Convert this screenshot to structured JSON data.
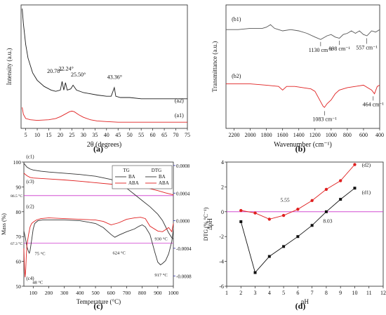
{
  "figure": {
    "panels": [
      {
        "id": "a",
        "label": "(a)"
      },
      {
        "id": "b",
        "label": "(b)"
      },
      {
        "id": "c",
        "label": "(c)"
      },
      {
        "id": "d",
        "label": "(d)"
      }
    ]
  },
  "chart_data": [
    {
      "id": "a",
      "type": "line",
      "xlabel": "2θ (degrees)",
      "ylabel": "Intensity (a.u.)",
      "xlim": [
        3,
        75
      ],
      "xticks": [
        5,
        10,
        15,
        20,
        25,
        30,
        35,
        40,
        45,
        50,
        55,
        60,
        65,
        70,
        75
      ],
      "yticks_shown": false,
      "series": [
        {
          "name": "(a2)",
          "color": "#1a1a1a",
          "x": [
            3.5,
            4,
            5,
            6,
            8,
            10,
            13,
            16,
            18,
            20,
            20.78,
            21.5,
            22.24,
            23,
            24.5,
            25.5,
            27,
            30,
            33,
            36,
            40,
            42,
            43.36,
            44,
            46,
            50,
            55,
            60,
            65,
            70,
            75
          ],
          "y": [
            0.97,
            0.85,
            0.68,
            0.57,
            0.45,
            0.39,
            0.34,
            0.31,
            0.3,
            0.31,
            0.38,
            0.31,
            0.37,
            0.31,
            0.32,
            0.35,
            0.31,
            0.29,
            0.28,
            0.27,
            0.26,
            0.26,
            0.33,
            0.26,
            0.25,
            0.25,
            0.24,
            0.24,
            0.24,
            0.24,
            0.24
          ]
        },
        {
          "name": "(a1)",
          "color": "#e02020",
          "x": [
            3.5,
            4,
            5,
            7,
            10,
            15,
            18,
            20,
            22,
            24,
            25,
            26,
            28,
            30,
            33,
            36,
            40,
            45,
            50,
            55,
            60,
            65,
            70,
            75
          ],
          "y": [
            0.17,
            0.115,
            0.08,
            0.07,
            0.065,
            0.07,
            0.08,
            0.095,
            0.115,
            0.135,
            0.14,
            0.135,
            0.11,
            0.09,
            0.07,
            0.06,
            0.055,
            0.05,
            0.05,
            0.05,
            0.05,
            0.05,
            0.05,
            0.05
          ]
        }
      ],
      "series_labels": [
        {
          "text": "(a2)",
          "x": 69.5,
          "y": 0.21
        },
        {
          "text": "(a1)",
          "x": 69.5,
          "y": 0.09
        }
      ],
      "annotations": [
        {
          "text": "20.78°",
          "x": 17.5,
          "y": 0.45
        },
        {
          "text": "22.24°",
          "x": 22.5,
          "y": 0.47
        },
        {
          "text": "25.50°",
          "x": 27.8,
          "y": 0.42
        },
        {
          "text": "43.36°",
          "x": 43.5,
          "y": 0.4
        }
      ]
    },
    {
      "id": "b",
      "type": "line",
      "xlabel": "Wavenumber (cm⁻¹)",
      "ylabel": "Transmittance (a.u.)",
      "xlim": [
        2300,
        400
      ],
      "xticks": [
        2200,
        2000,
        1800,
        1600,
        1400,
        1200,
        1000,
        800,
        600,
        400
      ],
      "yticks_shown": false,
      "series": [
        {
          "name": "(b1)",
          "color": "#555555",
          "x": [
            2300,
            2150,
            2000,
            1850,
            1800,
            1750,
            1700,
            1650,
            1600,
            1500,
            1400,
            1300,
            1200,
            1130,
            1050,
            1000,
            950,
            898,
            850,
            800,
            750,
            700,
            650,
            600,
            557,
            500,
            450,
            400
          ],
          "y": [
            0.8,
            0.8,
            0.81,
            0.81,
            0.82,
            0.84,
            0.81,
            0.8,
            0.79,
            0.8,
            0.79,
            0.77,
            0.74,
            0.72,
            0.75,
            0.76,
            0.74,
            0.73,
            0.76,
            0.77,
            0.79,
            0.77,
            0.79,
            0.76,
            0.75,
            0.79,
            0.78,
            0.8
          ]
        },
        {
          "name": "(b2)",
          "color": "#e02020",
          "x": [
            2300,
            2000,
            1800,
            1650,
            1600,
            1550,
            1450,
            1350,
            1250,
            1200,
            1150,
            1100,
            1083,
            1050,
            1000,
            950,
            900,
            850,
            800,
            700,
            600,
            500,
            464,
            430,
            400
          ],
          "y": [
            0.36,
            0.36,
            0.35,
            0.34,
            0.31,
            0.34,
            0.34,
            0.33,
            0.32,
            0.3,
            0.24,
            0.18,
            0.17,
            0.2,
            0.23,
            0.28,
            0.31,
            0.32,
            0.33,
            0.34,
            0.35,
            0.31,
            0.28,
            0.34,
            0.35
          ]
        }
      ],
      "series_labels": [
        {
          "text": "(b1)",
          "x": 2230,
          "y": 0.87
        },
        {
          "text": "(b2)",
          "x": 2230,
          "y": 0.41
        }
      ],
      "annotations": [
        {
          "text": "1130 cm⁻¹",
          "x": 1130,
          "y": 0.62,
          "arrow_to": 0.7
        },
        {
          "text": "898 cm⁻¹",
          "x": 898,
          "y": 0.63,
          "arrow_to": 0.71
        },
        {
          "text": "557 cm⁻¹",
          "x": 560,
          "y": 0.64,
          "arrow_to": 0.73
        },
        {
          "text": "1083 cm⁻¹",
          "x": 1080,
          "y": 0.06,
          "arrow_to": 0.14
        },
        {
          "text": "464 cm⁻¹",
          "x": 480,
          "y": 0.18,
          "arrow_to": 0.26
        }
      ]
    },
    {
      "id": "c",
      "type": "line",
      "xlabel": "Temperature (°C)",
      "ylabel": "Mass (%)",
      "y2label": "DTG (% °C⁻¹)",
      "xlim": [
        40,
        1000
      ],
      "ylim": [
        50,
        100
      ],
      "y2lim": [
        -0.00095,
        0.00085
      ],
      "xticks": [
        100,
        200,
        300,
        400,
        500,
        600,
        700,
        800,
        900,
        1000
      ],
      "yticks": [
        50,
        60,
        70,
        80,
        90,
        100
      ],
      "y2ticks": [
        -0.0008,
        -0.0004,
        0.0,
        0.0004,
        0.0008
      ],
      "y2ticklabels": [
        "-0.0008",
        "-0.0004",
        "0.0000",
        "0.0004",
        "0.0008"
      ],
      "legend": {
        "placement": "top-right",
        "groups": [
          {
            "title": "TG",
            "entries": [
              {
                "name": "BA",
                "color": "#333333"
              },
              {
                "name": "ABA",
                "color": "#e02020"
              }
            ]
          },
          {
            "title": "DTG",
            "entries": [
              {
                "name": "BA",
                "color": "#333333"
              },
              {
                "name": "ABA",
                "color": "#e02020"
              }
            ]
          }
        ]
      },
      "reference_lines": [
        {
          "label": "86.5 °C",
          "y": 86.5,
          "color": "#cc33cc"
        },
        {
          "label": "67.3 °C",
          "y": 67.3,
          "color": "#cc33cc"
        }
      ],
      "series": [
        {
          "name": "TG BA (c1)",
          "color": "#333333",
          "axis": "left",
          "x": [
            40,
            60,
            80,
            100,
            150,
            200,
            300,
            400,
            500,
            600,
            650,
            700,
            750,
            800,
            850,
            900,
            930,
            950,
            970,
            990,
            1000
          ],
          "y": [
            99.5,
            98.0,
            97.2,
            96.8,
            96.3,
            96.0,
            95.5,
            95.0,
            94.3,
            93.0,
            91.8,
            89.5,
            87.0,
            84.5,
            82.0,
            79.0,
            76.5,
            74.0,
            71.5,
            69.5,
            69.0
          ]
        },
        {
          "name": "TG ABA (c3)",
          "color": "#e02020",
          "axis": "left",
          "x": [
            40,
            60,
            80,
            100,
            200,
            300,
            400,
            500,
            600,
            700,
            800,
            850,
            900,
            950,
            1000
          ],
          "y": [
            95.5,
            94.5,
            93.8,
            93.6,
            93.2,
            92.8,
            92.3,
            91.7,
            91.1,
            90.5,
            89.9,
            89.3,
            88.5,
            87.6,
            86.8
          ]
        },
        {
          "name": "DTG BA (c2)",
          "color": "#333333",
          "axis": "right",
          "x": [
            40,
            50,
            60,
            70,
            75,
            80,
            90,
            100,
            110,
            130,
            160,
            200,
            300,
            400,
            500,
            550,
            600,
            624,
            650,
            700,
            750,
            780,
            800,
            820,
            850,
            880,
            900,
            917,
            930,
            950,
            970,
            990,
            1000
          ],
          "y": [
            -0.00015,
            -0.00025,
            -0.00038,
            -0.00045,
            -0.00047,
            -0.00043,
            -0.00028,
            -0.00012,
            -4e-05,
            0.0,
            1e-05,
            1e-05,
            1e-05,
            0.0,
            -4e-05,
            -0.0001,
            -0.0002,
            -0.00024,
            -0.00021,
            -0.00016,
            -0.00012,
            -8e-05,
            -6e-05,
            -9e-05,
            -0.0002,
            -0.00045,
            -0.0006,
            -0.00064,
            -0.00062,
            -0.00058,
            -0.00048,
            -0.0003,
            -0.00012
          ]
        },
        {
          "name": "DTG ABA (c4)",
          "color": "#e02020",
          "axis": "right",
          "x": [
            40,
            44,
            48,
            52,
            56,
            60,
            70,
            80,
            90,
            100,
            120,
            150,
            200,
            300,
            400,
            500,
            550,
            600,
            650,
            700,
            750,
            790,
            820,
            850,
            900,
            930,
            950,
            970,
            990,
            1000
          ],
          "y": [
            -0.0004,
            -0.0007,
            -0.00082,
            -0.0007,
            -0.0005,
            -0.00035,
            -0.0002,
            -9e-05,
            -4e-05,
            -2e-05,
            1e-05,
            3e-05,
            4e-05,
            3e-05,
            2e-05,
            1e-05,
            -1e-05,
            -6e-05,
            -3e-05,
            2e-05,
            4e-05,
            5e-05,
            3e-05,
            -8e-05,
            -0.00015,
            -0.00016,
            -0.00013,
            -0.0001,
            -0.00016,
            -4e-05
          ]
        }
      ],
      "series_labels": [
        {
          "text": "(c1)",
          "x": 55,
          "y": 101.5
        },
        {
          "text": "(c3)",
          "x": 55,
          "y": 91.5
        },
        {
          "text": "(c2)",
          "x": 55,
          "y": 81.5
        },
        {
          "text": "(c4)",
          "x": 55,
          "y": 52.5
        }
      ],
      "annotations": [
        {
          "text": "75 °C",
          "x": 110,
          "y": 62.6
        },
        {
          "text": "48 °C",
          "x": 95,
          "y": 51.0
        },
        {
          "text": "624 °C",
          "x": 610,
          "y": 62.8
        },
        {
          "text": "930 °C",
          "x": 880,
          "y": 68.5
        },
        {
          "text": "917 °C",
          "x": 880,
          "y": 54.0
        }
      ]
    },
    {
      "id": "d",
      "type": "line",
      "xlabel": "pH",
      "ylabel": "ΔpH",
      "xlim": [
        1,
        12
      ],
      "ylim": [
        -6,
        4
      ],
      "xticks": [
        1,
        2,
        3,
        4,
        5,
        6,
        7,
        8,
        9,
        10,
        11,
        12
      ],
      "yticks": [
        -6,
        -4,
        -2,
        0,
        2,
        4
      ],
      "zero_line_color": "#cc33cc",
      "series": [
        {
          "name": "(d1)",
          "color": "#111111",
          "marker": "square",
          "x": [
            2,
            3,
            4,
            5,
            6,
            7,
            8,
            9,
            10
          ],
          "y": [
            -0.8,
            -4.9,
            -3.6,
            -2.8,
            -2.0,
            -1.1,
            0.0,
            1.0,
            1.9
          ]
        },
        {
          "name": "(d2)",
          "color": "#e02020",
          "marker": "circle",
          "x": [
            2,
            3,
            4,
            5,
            6,
            7,
            8,
            9,
            10
          ],
          "y": [
            0.1,
            -0.1,
            -0.6,
            -0.3,
            0.2,
            0.9,
            1.8,
            2.5,
            3.8
          ]
        }
      ],
      "series_labels": [
        {
          "text": "(d2)",
          "x": 10.5,
          "y": 3.8
        },
        {
          "text": "(d1)",
          "x": 10.5,
          "y": 1.6
        }
      ],
      "annotations": [
        {
          "text": "5.55",
          "x": 5.1,
          "y": 0.8
        },
        {
          "text": "8.03",
          "x": 8.1,
          "y": -0.9
        }
      ]
    }
  ]
}
